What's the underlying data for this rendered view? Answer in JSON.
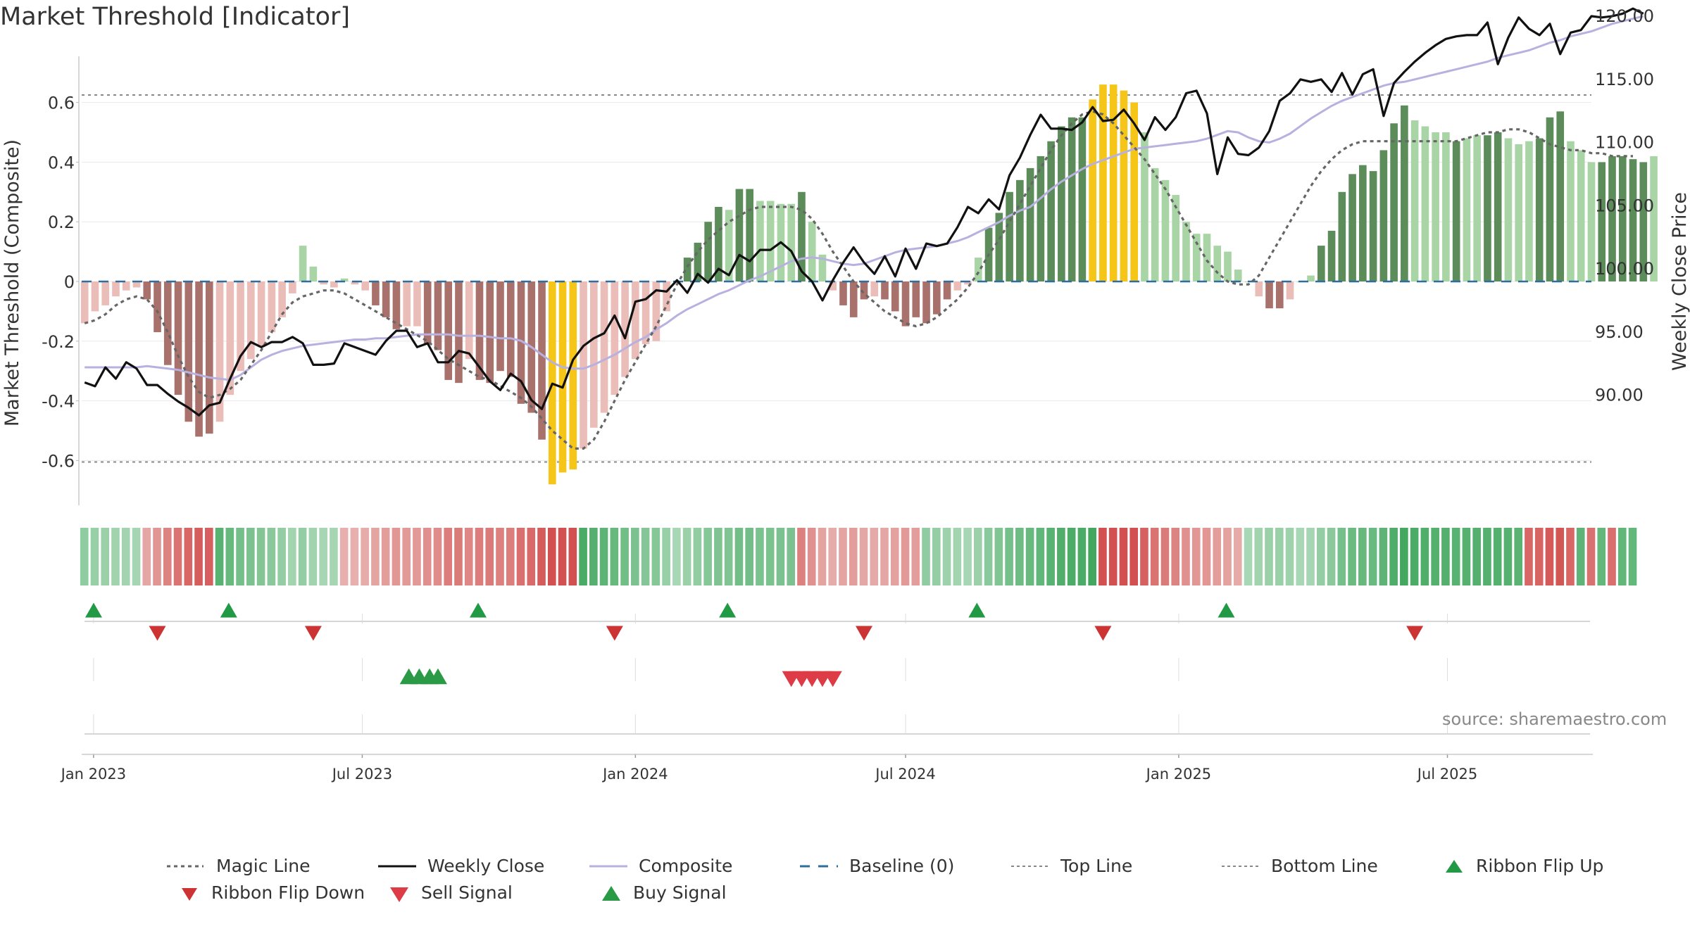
{
  "title": "Market Threshold [Indicator]",
  "source": "source: sharemaestro.com",
  "colors": {
    "magic_line": "#666666",
    "weekly_close": "#111111",
    "composite": "#b8b1e0",
    "baseline": "#2c6f9f",
    "threshold": "#888888",
    "bar_strong_pos": "#5b8c5a",
    "bar_weak_pos": "#a9d5a6",
    "bar_strong_neg": "#a8716c",
    "bar_weak_neg": "#ebbdb8",
    "bar_extreme": "#f5c518",
    "ribbon_up": "#229944",
    "ribbon_down": "#cc3333",
    "sell": "#dd3b45",
    "buy": "#2a9a46"
  },
  "chart_data": {
    "type": "bar",
    "title": "Market Threshold [Indicator]",
    "ylabel": "Market Threshold (Composite)",
    "y2label": "Weekly Close Price",
    "x_start": "2022-12-26",
    "x_step_days": 7,
    "x_ticks": [
      "Jan 2023",
      "Jul 2023",
      "Jan 2024",
      "Jul 2024",
      "Jan 2025",
      "Jul 2025"
    ],
    "x_tick_dates": [
      "2023-01-01",
      "2023-07-01",
      "2024-01-01",
      "2024-07-01",
      "2025-01-01",
      "2025-07-01"
    ],
    "xlim": [
      "2022-12-24",
      "2025-10-06"
    ],
    "ylim": [
      -0.76,
      0.76
    ],
    "y_ticks": [
      -0.6,
      -0.4,
      -0.2,
      0,
      0.2,
      0.4,
      0.6
    ],
    "y_tick_labels": [
      "-0.6",
      "-0.4",
      "-0.2",
      "0",
      "0.2",
      "0.4",
      "0.6"
    ],
    "y2lim": [
      86.5,
      122.3
    ],
    "y2_ticks": [
      90,
      95,
      100,
      105,
      110,
      115,
      120
    ],
    "y2_tick_labels": [
      "90.00",
      "95.00",
      "100.00",
      "105.00",
      "110.00",
      "115.00",
      "120.00"
    ],
    "top_line": 0.625,
    "bottom_line": -0.605,
    "composite": [
      -0.14,
      -0.1,
      -0.08,
      -0.05,
      -0.03,
      -0.02,
      -0.06,
      -0.17,
      -0.28,
      -0.38,
      -0.47,
      -0.52,
      -0.51,
      -0.47,
      -0.38,
      -0.3,
      -0.26,
      -0.22,
      -0.17,
      -0.12,
      -0.04,
      0.12,
      0.05,
      -0.01,
      -0.02,
      0.01,
      -0.01,
      -0.03,
      -0.08,
      -0.12,
      -0.16,
      -0.15,
      -0.15,
      -0.21,
      -0.23,
      -0.33,
      -0.34,
      -0.26,
      -0.33,
      -0.34,
      -0.3,
      -0.32,
      -0.41,
      -0.44,
      -0.53,
      -0.68,
      -0.64,
      -0.63,
      -0.56,
      -0.49,
      -0.44,
      -0.38,
      -0.32,
      -0.26,
      -0.21,
      -0.2,
      -0.1,
      0,
      0.08,
      0.13,
      0.2,
      0.25,
      0.24,
      0.31,
      0.31,
      0.27,
      0.27,
      0.26,
      0.26,
      0.3,
      0.2,
      0.09,
      -0.03,
      -0.08,
      -0.12,
      -0.06,
      -0.05,
      -0.06,
      -0.1,
      -0.15,
      -0.12,
      -0.14,
      -0.11,
      -0.06,
      -0.03,
      -0.01,
      0.08,
      0.18,
      0.23,
      0.3,
      0.34,
      0.38,
      0.42,
      0.47,
      0.52,
      0.55,
      0.55,
      0.61,
      0.66,
      0.66,
      0.64,
      0.6,
      0.5,
      0.38,
      0.34,
      0.29,
      0.2,
      0.16,
      0.16,
      0.12,
      0.1,
      0.04,
      0,
      -0.05,
      -0.09,
      -0.09,
      -0.06,
      0,
      0.02,
      0.12,
      0.17,
      0.3,
      0.36,
      0.39,
      0.37,
      0.44,
      0.53,
      0.59,
      0.54,
      0.52,
      0.5,
      0.5,
      0.47,
      0.48,
      0.49,
      0.49,
      0.5,
      0.48,
      0.46,
      0.47,
      0.48,
      0.55,
      0.57,
      0.47,
      0.44,
      0.4,
      0.4,
      0.42,
      0.42,
      0.41,
      0.4,
      0.42
    ],
    "bar_strength": [
      0,
      0,
      0,
      0,
      0,
      0,
      1,
      1,
      1,
      1,
      1,
      1,
      1,
      0,
      0,
      0,
      0,
      0,
      0,
      0,
      0,
      0,
      0,
      0,
      0,
      0,
      0,
      0,
      1,
      1,
      1,
      0,
      0,
      1,
      1,
      1,
      1,
      0,
      1,
      1,
      1,
      1,
      1,
      1,
      1,
      2,
      2,
      2,
      0,
      0,
      0,
      0,
      0,
      0,
      0,
      0,
      0,
      1,
      1,
      1,
      1,
      1,
      0,
      1,
      1,
      0,
      0,
      0,
      0,
      1,
      0,
      0,
      0,
      1,
      1,
      1,
      0,
      1,
      1,
      1,
      1,
      1,
      1,
      1,
      0,
      0,
      0,
      1,
      1,
      1,
      1,
      1,
      1,
      1,
      1,
      1,
      1,
      2,
      2,
      2,
      2,
      2,
      0,
      0,
      0,
      0,
      0,
      0,
      0,
      0,
      0,
      0,
      0,
      0,
      1,
      1,
      0,
      0,
      0,
      1,
      1,
      1,
      1,
      1,
      1,
      1,
      1,
      1,
      0,
      0,
      0,
      0,
      1,
      0,
      0,
      1,
      1,
      0,
      0,
      0,
      1,
      1,
      1,
      0,
      0,
      0,
      1,
      1,
      1,
      1,
      1
    ],
    "magic_line": [
      -0.14,
      -0.13,
      -0.11,
      -0.08,
      -0.06,
      -0.05,
      -0.06,
      -0.1,
      -0.17,
      -0.25,
      -0.32,
      -0.37,
      -0.39,
      -0.38,
      -0.36,
      -0.33,
      -0.28,
      -0.23,
      -0.17,
      -0.11,
      -0.07,
      -0.05,
      -0.04,
      -0.03,
      -0.03,
      -0.04,
      -0.06,
      -0.08,
      -0.1,
      -0.12,
      -0.14,
      -0.16,
      -0.18,
      -0.2,
      -0.23,
      -0.26,
      -0.28,
      -0.3,
      -0.32,
      -0.33,
      -0.35,
      -0.37,
      -0.39,
      -0.42,
      -0.46,
      -0.5,
      -0.53,
      -0.56,
      -0.56,
      -0.53,
      -0.47,
      -0.4,
      -0.33,
      -0.27,
      -0.21,
      -0.15,
      -0.08,
      -0.01,
      0.05,
      0.1,
      0.14,
      0.17,
      0.2,
      0.22,
      0.24,
      0.25,
      0.25,
      0.25,
      0.25,
      0.24,
      0.21,
      0.16,
      0.1,
      0.05,
      0,
      -0.04,
      -0.07,
      -0.1,
      -0.12,
      -0.14,
      -0.15,
      -0.14,
      -0.12,
      -0.09,
      -0.06,
      -0.02,
      0.03,
      0.09,
      0.14,
      0.2,
      0.26,
      0.32,
      0.38,
      0.44,
      0.49,
      0.53,
      0.56,
      0.57,
      0.56,
      0.53,
      0.49,
      0.45,
      0.41,
      0.36,
      0.31,
      0.25,
      0.19,
      0.13,
      0.07,
      0.03,
      0,
      -0.01,
      -0.01,
      0.02,
      0.08,
      0.14,
      0.2,
      0.26,
      0.32,
      0.37,
      0.41,
      0.44,
      0.46,
      0.47,
      0.47,
      0.47,
      0.47,
      0.47,
      0.47,
      0.47,
      0.47,
      0.47,
      0.47,
      0.48,
      0.49,
      0.5,
      0.5,
      0.51,
      0.51,
      0.5,
      0.48,
      0.46,
      0.45,
      0.44,
      0.44,
      0.43,
      0.43,
      0.42,
      0.42,
      0.42
    ],
    "weekly_close": [
      91,
      90.7,
      92.2,
      91.3,
      92.6,
      92.1,
      90.8,
      90.8,
      90.1,
      89.5,
      89,
      88.4,
      89.2,
      89.4,
      91.3,
      93.1,
      94.2,
      93.8,
      94.2,
      94.2,
      94.6,
      94.1,
      92.4,
      92.4,
      92.5,
      94.1,
      93.8,
      93.5,
      93.2,
      94.3,
      95.1,
      95.1,
      93.8,
      94.1,
      92.6,
      92.6,
      93.5,
      93.3,
      92.2,
      91.1,
      90.4,
      91.7,
      91.1,
      89.6,
      88.9,
      90.9,
      90.6,
      92.8,
      93.9,
      94.5,
      94.9,
      96.3,
      94.5,
      97.4,
      97.6,
      98.3,
      98.2,
      99.1,
      98.1,
      99.6,
      98.9,
      100,
      99.5,
      101.1,
      100.6,
      101.5,
      101.5,
      102.1,
      101.4,
      99.8,
      99,
      97.5,
      99.1,
      100.5,
      101.7,
      100.5,
      99.6,
      101,
      99.4,
      101.6,
      100,
      102,
      101.8,
      102,
      103.3,
      104.9,
      104.4,
      105.5,
      104.7,
      107.4,
      108.8,
      110.6,
      112.2,
      111.1,
      111.1,
      111,
      111.6,
      112.8,
      111.7,
      111.8,
      112.6,
      111.5,
      110.2,
      112,
      111,
      112,
      113.9,
      114.1,
      112.3,
      107.5,
      110.4,
      109.1,
      109,
      109.6,
      110.9,
      113.3,
      113.9,
      115,
      114.8,
      115,
      114,
      115.5,
      113.8,
      115.4,
      115.8,
      112.1,
      114.7,
      115.6,
      116.4,
      117.1,
      117.7,
      118.2,
      118.4,
      118.5,
      118.5,
      119.5,
      116.2,
      118.3,
      119.9,
      119,
      118.5,
      119.4,
      117,
      118.7,
      118.9,
      120,
      119.9,
      120,
      120.2,
      120.6,
      120.2
    ],
    "composite_line": [
      92.2,
      92.2,
      92.2,
      92.2,
      92.2,
      92.2,
      92.3,
      92.2,
      92.1,
      92,
      91.8,
      91.6,
      91.4,
      91.3,
      91.2,
      91.6,
      92.2,
      92.8,
      93.2,
      93.5,
      93.7,
      93.9,
      94,
      94.1,
      94.2,
      94.3,
      94.4,
      94.4,
      94.5,
      94.5,
      94.6,
      94.7,
      94.8,
      94.8,
      94.8,
      94.8,
      94.7,
      94.7,
      94.7,
      94.6,
      94.5,
      94.5,
      94.3,
      93.8,
      93.2,
      92.6,
      92.2,
      92.1,
      92.1,
      92.4,
      92.8,
      93.2,
      93.7,
      94.2,
      94.6,
      95.2,
      95.7,
      96.3,
      96.8,
      97.2,
      97.6,
      98,
      98.3,
      98.7,
      99.1,
      99.4,
      99.8,
      100.2,
      100.6,
      100.8,
      100.9,
      100.8,
      100.6,
      100.4,
      100.3,
      100.4,
      100.7,
      101,
      101.3,
      101.5,
      101.6,
      101.7,
      101.8,
      102,
      102.2,
      102.5,
      102.9,
      103.3,
      103.7,
      104.2,
      104.6,
      104.9,
      105.6,
      106.3,
      106.9,
      107.4,
      107.9,
      108.3,
      108.6,
      108.9,
      109.2,
      109.5,
      109.6,
      109.7,
      109.8,
      109.9,
      110,
      110.1,
      110.3,
      110.6,
      110.9,
      110.8,
      110.4,
      110.1,
      110,
      110.3,
      110.7,
      111.3,
      111.9,
      112.4,
      112.9,
      113.3,
      113.6,
      113.9,
      114.2,
      114.5,
      114.7,
      114.8,
      115,
      115.2,
      115.4,
      115.6,
      115.8,
      116,
      116.2,
      116.4,
      116.7,
      116.9,
      117.1,
      117.3,
      117.6,
      117.9,
      118.1,
      118.4,
      118.6,
      118.8,
      119.1,
      119.4,
      119.6,
      119.8,
      120
    ],
    "ribbon_up_weeks": [
      1,
      14,
      38,
      62,
      86,
      110
    ],
    "ribbon_down_weeks": [
      7,
      22,
      51,
      75,
      98,
      128
    ],
    "buy_signal_weeks": [
      31.2,
      32.2,
      33.2,
      34
    ],
    "sell_signal_weeks": [
      68,
      69,
      70,
      71,
      72
    ]
  },
  "legend": [
    {
      "label": "Magic Line",
      "kind": "dotted"
    },
    {
      "label": "Weekly Close",
      "kind": "solid"
    },
    {
      "label": "Composite",
      "kind": "composite"
    },
    {
      "label": "Baseline (0)",
      "kind": "dashed"
    },
    {
      "label": "Top Line",
      "kind": "thin-dotted"
    },
    {
      "label": "Bottom Line",
      "kind": "thin-dotted"
    },
    {
      "label": "Ribbon Flip Up",
      "kind": "tri-up"
    },
    {
      "label": "Ribbon Flip Down",
      "kind": "tri-down"
    },
    {
      "label": "Sell Signal",
      "kind": "sell"
    },
    {
      "label": "Buy Signal",
      "kind": "buy"
    }
  ]
}
